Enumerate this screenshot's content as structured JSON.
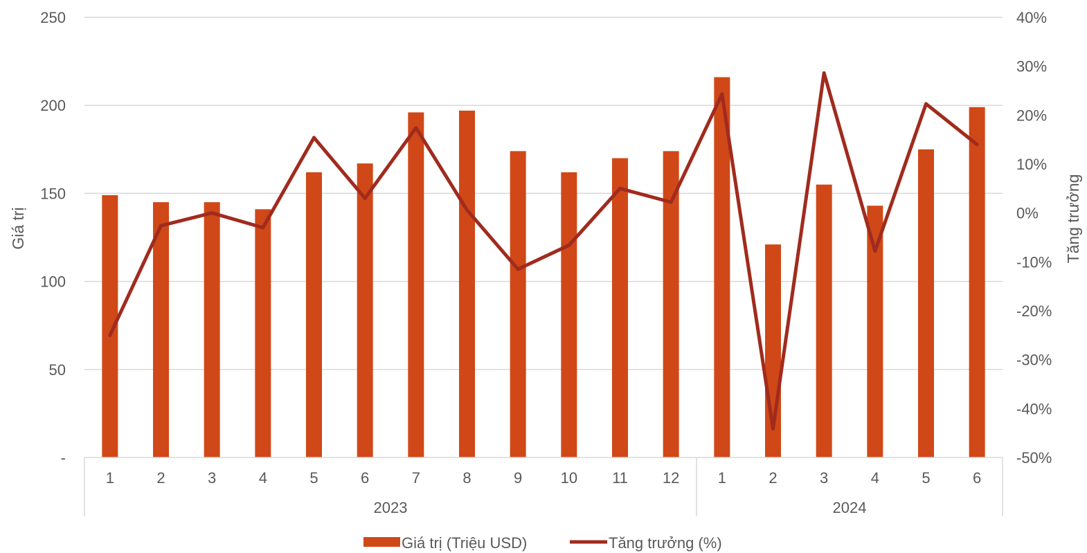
{
  "chart_data": {
    "type": "bar",
    "title": "",
    "categories": [
      "1",
      "2",
      "3",
      "4",
      "5",
      "6",
      "7",
      "8",
      "9",
      "10",
      "11",
      "12",
      "1",
      "2",
      "3",
      "4",
      "5",
      "6"
    ],
    "groups": [
      {
        "label": "2023",
        "start": 0,
        "count": 12
      },
      {
        "label": "2024",
        "start": 12,
        "count": 6
      }
    ],
    "y_left": {
      "label": "Giá trị",
      "min": 0,
      "max": 250,
      "ticks": [
        0,
        50,
        100,
        150,
        200,
        250
      ],
      "tick_labels": [
        "-",
        "50",
        "100",
        "150",
        "200",
        "250"
      ]
    },
    "y_right": {
      "label": "Tăng trưởng",
      "min": -50,
      "max": 40,
      "ticks": [
        -50,
        -40,
        -30,
        -20,
        -10,
        0,
        10,
        20,
        30,
        40
      ],
      "tick_labels": [
        "-50%",
        "-40%",
        "-30%",
        "-20%",
        "-10%",
        "0%",
        "10%",
        "20%",
        "30%",
        "40%"
      ]
    },
    "grid": true,
    "legend_position": "bottom",
    "series": [
      {
        "name": "Giá trị (Triệu USD)",
        "type": "bar",
        "axis": "left",
        "color": "#D04817",
        "values": [
          149,
          145,
          145,
          141,
          162,
          167,
          196,
          197,
          174,
          162,
          170,
          174,
          216,
          121,
          155,
          143,
          175,
          199
        ]
      },
      {
        "name": "Tăng trưởng (%)",
        "type": "line",
        "axis": "right",
        "color": "#A02B1E",
        "values": [
          -25,
          -2.6,
          0,
          -3,
          15.4,
          3,
          17.4,
          0.6,
          -11.5,
          -6.6,
          5,
          2.2,
          24.3,
          -44.1,
          28.6,
          -7.8,
          22.3,
          14
        ]
      }
    ]
  }
}
